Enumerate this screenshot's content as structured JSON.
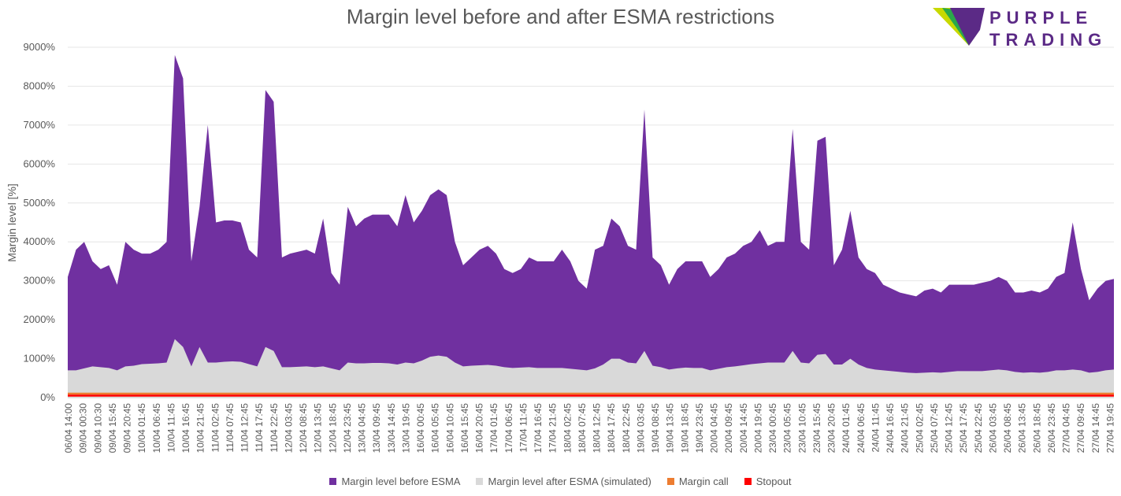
{
  "chart_data": {
    "type": "area",
    "title": "Margin level before and after ESMA restrictions",
    "ylabel": "Margin level [%]",
    "xlabel": "",
    "ylim": [
      0,
      9000
    ],
    "y_ticks": [
      "0%",
      "1000%",
      "2000%",
      "3000%",
      "4000%",
      "5000%",
      "6000%",
      "7000%",
      "8000%",
      "9000%"
    ],
    "y_tick_values": [
      0,
      1000,
      2000,
      3000,
      4000,
      5000,
      6000,
      7000,
      8000,
      9000
    ],
    "x_ticks": [
      "06/04 14:00",
      "09/04 00:30",
      "09/04 10:30",
      "09/04 15:45",
      "09/04 20:45",
      "10/04 01:45",
      "10/04 06:45",
      "10/04 11:45",
      "10/04 16:45",
      "10/04 21:45",
      "11/04 02:45",
      "11/04 07:45",
      "11/04 12:45",
      "11/04 17:45",
      "11/04 22:45",
      "12/04 03:45",
      "12/04 08:45",
      "12/04 13:45",
      "12/04 18:45",
      "12/04 23:45",
      "13/04 04:45",
      "13/04 09:45",
      "13/04 14:45",
      "13/04 19:45",
      "16/04 00:45",
      "16/04 05:45",
      "16/04 10:45",
      "16/04 15:45",
      "16/04 20:45",
      "17/04 01:45",
      "17/04 06:45",
      "17/04 11:45",
      "17/04 16:45",
      "17/04 21:45",
      "18/04 02:45",
      "18/04 07:45",
      "18/04 12:45",
      "18/04 17:45",
      "18/04 22:45",
      "19/04 03:45",
      "19/04 08:45",
      "19/04 13:45",
      "19/04 18:45",
      "19/04 23:45",
      "20/04 04:45",
      "20/04 09:45",
      "20/04 14:45",
      "20/04 19:45",
      "23/04 00:45",
      "23/04 05:45",
      "23/04 10:45",
      "23/04 15:45",
      "23/04 20:45",
      "24/04 01:45",
      "24/04 06:45",
      "24/04 11:45",
      "24/04 16:45",
      "24/04 21:45",
      "25/04 02:45",
      "25/04 07:45",
      "25/04 12:45",
      "25/04 17:45",
      "25/04 22:45",
      "26/04 03:45",
      "26/04 08:45",
      "26/04 13:45",
      "26/04 18:45",
      "26/04 23:45",
      "27/04 04:45",
      "27/04 09:45",
      "27/04 14:45",
      "27/04 19:45"
    ],
    "series": [
      {
        "name": "Margin level before ESMA",
        "color": "#7030a0",
        "values": [
          3100,
          3800,
          4000,
          3500,
          3300,
          3400,
          2900,
          4000,
          3800,
          3700,
          3700,
          3800,
          4000,
          8800,
          8200,
          3500,
          4900,
          7000,
          4500,
          4550,
          4550,
          4500,
          3800,
          3600,
          7900,
          7600,
          3600,
          3700,
          3750,
          3800,
          3700,
          4600,
          3200,
          2900,
          4900,
          4400,
          4600,
          4700,
          4700,
          4700,
          4400,
          5200,
          4500,
          4800,
          5200,
          5350,
          5200,
          4000,
          3400,
          3600,
          3800,
          3900,
          3700,
          3300,
          3200,
          3300,
          3600,
          3500,
          3500,
          3500,
          3800,
          3500,
          3000,
          2800,
          3800,
          3900,
          4600,
          4400,
          3900,
          3800,
          7400,
          3600,
          3400,
          2900,
          3300,
          3500,
          3500,
          3500,
          3100,
          3300,
          3600,
          3700,
          3900,
          4000,
          4300,
          3900,
          4000,
          4000,
          6900,
          4000,
          3800,
          6600,
          6700,
          3400,
          3800,
          4800,
          3600,
          3300,
          3200,
          2900,
          2800,
          2700,
          2650,
          2600,
          2750,
          2800,
          2700,
          2900,
          2900,
          2900,
          2900,
          2950,
          3000,
          3100,
          3000,
          2700,
          2700,
          2750,
          2700,
          2800,
          3100,
          3200,
          4500,
          3300,
          2500,
          2800,
          3000,
          3050
        ]
      },
      {
        "name": "Margin level after ESMA (simulated)",
        "color": "#d9d9d9",
        "values": [
          700,
          700,
          750,
          800,
          780,
          760,
          700,
          800,
          820,
          860,
          870,
          880,
          900,
          1500,
          1300,
          800,
          1300,
          900,
          900,
          920,
          930,
          920,
          860,
          800,
          1300,
          1200,
          780,
          780,
          790,
          800,
          780,
          800,
          750,
          700,
          900,
          880,
          880,
          890,
          890,
          880,
          850,
          900,
          880,
          950,
          1050,
          1080,
          1050,
          900,
          800,
          820,
          830,
          840,
          820,
          780,
          760,
          770,
          780,
          760,
          760,
          760,
          760,
          740,
          720,
          700,
          750,
          850,
          1000,
          1000,
          900,
          880,
          1200,
          820,
          780,
          720,
          750,
          770,
          760,
          760,
          700,
          740,
          780,
          800,
          830,
          860,
          880,
          900,
          900,
          900,
          1200,
          900,
          880,
          1100,
          1120,
          850,
          850,
          1000,
          850,
          760,
          720,
          700,
          680,
          660,
          640,
          630,
          640,
          650,
          640,
          660,
          680,
          680,
          680,
          680,
          700,
          720,
          700,
          660,
          640,
          650,
          640,
          660,
          700,
          700,
          720,
          700,
          640,
          660,
          700,
          720
        ]
      },
      {
        "name": "Margin call",
        "color": "#ed7d31",
        "values": [
          100
        ]
      },
      {
        "name": "Stopout",
        "color": "#ff0000",
        "values": [
          50
        ]
      }
    ],
    "grid": true,
    "legend": "bottom"
  },
  "logo": {
    "line1": "PURPLE",
    "line2": "TRADING"
  }
}
